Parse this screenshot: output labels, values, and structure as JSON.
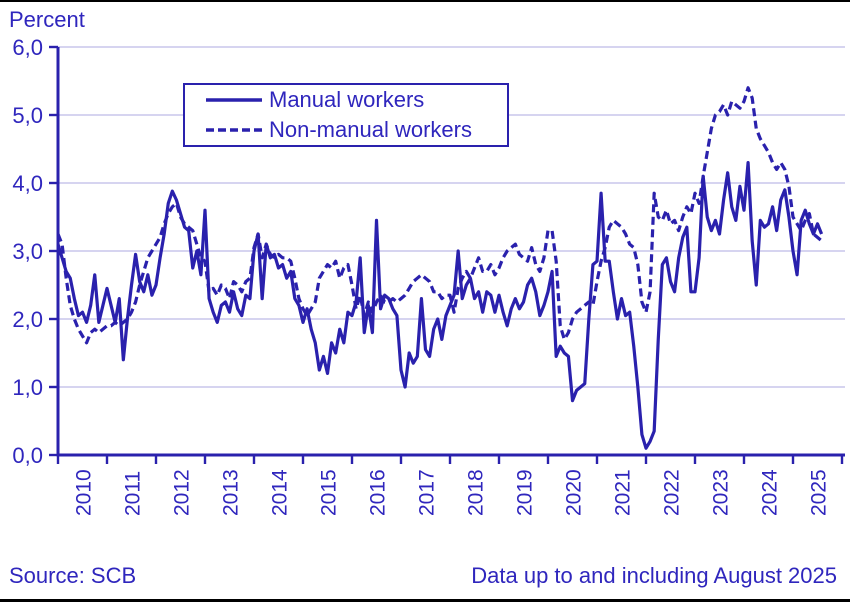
{
  "title": "Percent",
  "footer": {
    "source": "Source: SCB",
    "note": "Data up to and including August 2025"
  },
  "colors": {
    "line": "#2a21ad",
    "text": "#2f26bd",
    "grid": "#c9c5ec",
    "frame": "#000000",
    "background": "#ffffff"
  },
  "chart_data": {
    "type": "line",
    "title": "Percent",
    "xlabel": "",
    "ylabel": "Percent",
    "ylim": [
      0,
      6
    ],
    "grid": true,
    "legend_position": "top-left-inside",
    "x_unit": "monthly",
    "x_range_start": "2010-01",
    "x_range_end": "2025-08",
    "x_tick_years": [
      2010,
      2011,
      2012,
      2013,
      2014,
      2015,
      2016,
      2017,
      2018,
      2019,
      2020,
      2021,
      2022,
      2023,
      2024,
      2025
    ],
    "y_tick_labels": [
      "6,0",
      "5,0",
      "4,0",
      "3,0",
      "2,0",
      "1,0",
      "0,0"
    ],
    "series": [
      {
        "name": "Manual workers",
        "style": "solid",
        "values": [
          3.1,
          2.9,
          2.7,
          2.6,
          2.3,
          2.05,
          2.1,
          1.95,
          2.2,
          2.65,
          1.95,
          2.2,
          2.45,
          2.2,
          1.95,
          2.3,
          1.4,
          2.0,
          2.5,
          2.95,
          2.55,
          2.4,
          2.65,
          2.35,
          2.5,
          2.9,
          3.25,
          3.7,
          3.88,
          3.75,
          3.55,
          3.35,
          3.3,
          2.75,
          3.0,
          2.65,
          3.6,
          2.3,
          2.1,
          1.95,
          2.2,
          2.25,
          2.1,
          2.4,
          2.15,
          2.05,
          2.35,
          2.3,
          3.0,
          3.25,
          2.3,
          3.1,
          2.9,
          2.95,
          2.75,
          2.8,
          2.6,
          2.7,
          2.3,
          2.2,
          1.95,
          2.15,
          1.85,
          1.65,
          1.25,
          1.45,
          1.2,
          1.65,
          1.5,
          1.85,
          1.65,
          2.1,
          2.05,
          2.25,
          2.9,
          1.8,
          2.2,
          1.8,
          3.45,
          2.15,
          2.35,
          2.3,
          2.15,
          2.05,
          1.25,
          1.0,
          1.5,
          1.35,
          1.45,
          2.3,
          1.55,
          1.45,
          1.85,
          2.0,
          1.7,
          2.05,
          2.2,
          2.35,
          3.0,
          2.3,
          2.5,
          2.6,
          2.3,
          2.4,
          2.1,
          2.4,
          2.35,
          2.1,
          2.35,
          2.1,
          1.9,
          2.15,
          2.3,
          2.15,
          2.25,
          2.5,
          2.6,
          2.4,
          2.05,
          2.2,
          2.4,
          2.7,
          1.45,
          1.6,
          1.5,
          1.45,
          0.8,
          0.95,
          1.0,
          1.05,
          2.0,
          2.8,
          2.85,
          3.85,
          2.85,
          2.85,
          2.4,
          2.0,
          2.3,
          2.05,
          2.1,
          1.6,
          1.0,
          0.3,
          0.1,
          0.2,
          0.35,
          1.7,
          2.8,
          2.9,
          2.55,
          2.4,
          2.9,
          3.2,
          3.35,
          2.4,
          2.4,
          2.9,
          4.1,
          3.5,
          3.3,
          3.45,
          3.25,
          3.75,
          4.15,
          3.65,
          3.45,
          3.95,
          3.6,
          4.3,
          3.15,
          2.5,
          3.45,
          3.35,
          3.4,
          3.65,
          3.3,
          3.75,
          3.9,
          3.5,
          3.0,
          2.65,
          3.45,
          3.6,
          3.4,
          3.25,
          3.4,
          3.25
        ]
      },
      {
        "name": "Non-manual workers",
        "style": "dashed",
        "values": [
          3.25,
          3.1,
          2.6,
          2.2,
          2.0,
          1.85,
          1.75,
          1.65,
          1.8,
          1.85,
          1.8,
          1.85,
          1.9,
          1.9,
          1.95,
          1.9,
          1.95,
          2.0,
          2.1,
          2.25,
          2.5,
          2.7,
          2.9,
          3.0,
          3.1,
          3.2,
          3.4,
          3.55,
          3.65,
          3.7,
          3.5,
          3.4,
          3.35,
          3.3,
          3.1,
          2.9,
          2.85,
          2.4,
          2.45,
          2.35,
          2.5,
          2.45,
          2.3,
          2.55,
          2.5,
          2.4,
          2.55,
          2.6,
          3.05,
          3.25,
          2.9,
          3.1,
          2.95,
          2.9,
          2.95,
          2.9,
          2.9,
          2.85,
          2.6,
          2.3,
          2.15,
          2.05,
          2.15,
          2.25,
          2.6,
          2.7,
          2.8,
          2.75,
          2.85,
          2.6,
          2.75,
          2.8,
          2.5,
          2.15,
          2.35,
          2.05,
          2.25,
          2.1,
          2.25,
          2.35,
          2.25,
          2.25,
          2.3,
          2.25,
          2.3,
          2.35,
          2.45,
          2.55,
          2.6,
          2.65,
          2.6,
          2.55,
          2.4,
          2.4,
          2.3,
          2.35,
          2.35,
          2.1,
          2.45,
          2.6,
          2.7,
          2.6,
          2.75,
          2.9,
          2.7,
          2.7,
          2.8,
          2.65,
          2.75,
          2.9,
          3.0,
          3.05,
          3.1,
          2.95,
          2.9,
          2.85,
          3.05,
          2.8,
          2.7,
          2.9,
          3.3,
          3.3,
          2.85,
          1.9,
          1.7,
          1.8,
          2.0,
          2.1,
          2.15,
          2.2,
          2.25,
          2.2,
          2.55,
          2.85,
          3.05,
          3.35,
          3.45,
          3.4,
          3.35,
          3.25,
          3.1,
          3.05,
          2.8,
          2.25,
          2.1,
          2.4,
          3.85,
          3.5,
          3.45,
          3.6,
          3.4,
          3.45,
          3.3,
          3.5,
          3.65,
          3.55,
          3.85,
          3.7,
          4.1,
          4.45,
          4.8,
          5.0,
          5.05,
          5.15,
          5.0,
          5.2,
          5.15,
          5.1,
          5.2,
          5.4,
          5.25,
          4.8,
          4.65,
          4.55,
          4.45,
          4.3,
          4.2,
          4.3,
          4.2,
          3.95,
          3.5,
          3.4,
          3.3,
          3.45,
          3.55,
          3.25,
          3.2,
          3.15
        ]
      }
    ]
  }
}
